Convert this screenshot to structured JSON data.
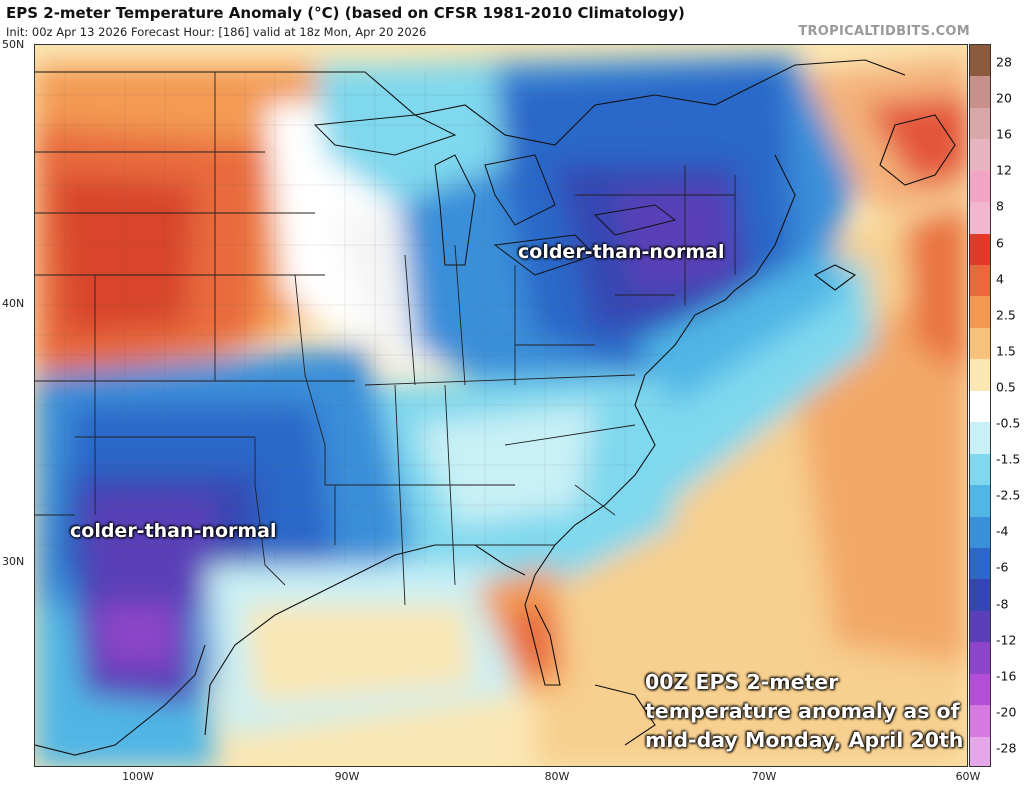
{
  "header": {
    "title": "EPS 2-meter Temperature Anomaly (°C) (based on CFSR 1981-2010 Climatology)",
    "subtitle": "Init: 00z Apr 13 2026   Forecast Hour: [186]   valid at 18z Mon, Apr 20 2026",
    "brand": "TROPICALTIDBITS.COM"
  },
  "axes": {
    "lat_labels": [
      "50N",
      "40N",
      "30N"
    ],
    "lon_labels": [
      "100W",
      "90W",
      "80W",
      "70W",
      "60W"
    ]
  },
  "colorbar": {
    "labels": [
      "28",
      "20",
      "16",
      "12",
      "8",
      "6",
      "4",
      "2.5",
      "1.5",
      "0.5",
      "-0.5",
      "-1.5",
      "-2.5",
      "-4",
      "-6",
      "-8",
      "-12",
      "-16",
      "-20",
      "-28"
    ],
    "colors": [
      "#8b5a3c",
      "#c7908a",
      "#d9a6a9",
      "#e8b4c2",
      "#f1a4c4",
      "#f3b6cf",
      "#e13a2a",
      "#e86a3c",
      "#f39a52",
      "#f6c27c",
      "#fbe7b4",
      "#ffffff",
      "#c9f0f6",
      "#7fd8ee",
      "#4fb6e6",
      "#3a8fd9",
      "#2c67c9",
      "#3446b3",
      "#5a3fb8",
      "#8c44c8",
      "#b24fd6",
      "#d57ae0",
      "#e6a7e8"
    ]
  },
  "annotations": {
    "north": "colder-than-normal",
    "south": "colder-than-normal",
    "caption_line1": "00Z EPS 2-meter",
    "caption_line2": "temperature anomaly as of",
    "caption_line3": "mid-day Monday, April 20th"
  }
}
